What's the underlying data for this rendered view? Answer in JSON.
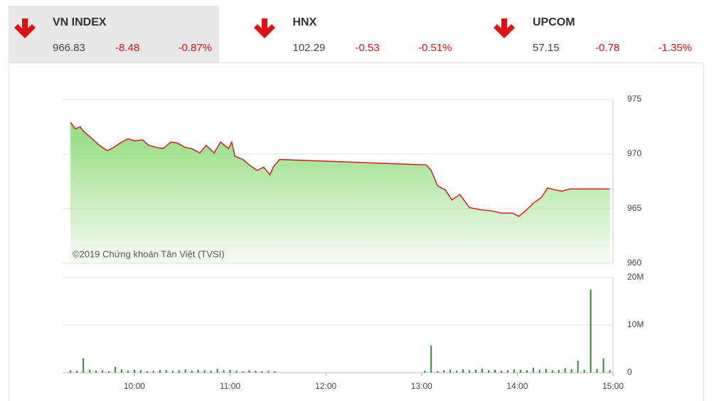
{
  "header": {
    "indices": [
      {
        "name": "VN INDEX",
        "value": "966.83",
        "change": "-8.48",
        "percent": "-0.87%"
      },
      {
        "name": "HNX",
        "value": "102.29",
        "change": "-0.53",
        "percent": "-0.51%"
      },
      {
        "name": "UPCOM",
        "value": "57.15",
        "change": "-0.78",
        "percent": "-1.35%"
      }
    ]
  },
  "chart_data": [
    {
      "type": "area",
      "annotation": "©2019 Chứng khoán Tân Việt (TVSI)",
      "x": [
        560,
        563,
        566,
        568,
        572,
        578,
        583,
        587,
        592,
        596,
        600,
        605,
        609,
        614,
        618,
        623,
        627,
        632,
        636,
        641,
        645,
        650,
        654,
        659,
        661,
        663,
        668,
        672,
        677,
        681,
        685,
        687,
        691,
        783,
        786,
        790,
        795,
        799,
        804,
        810,
        817,
        824,
        830,
        837,
        841,
        846,
        850,
        855,
        859,
        864,
        868,
        873,
        898
      ],
      "values": [
        972.9,
        972.3,
        972.5,
        972.1,
        971.6,
        970.8,
        970.3,
        970.6,
        971.1,
        971.4,
        971.2,
        971.3,
        970.8,
        970.6,
        970.5,
        971.1,
        971.0,
        970.6,
        970.5,
        970.1,
        970.8,
        970.1,
        971.1,
        970.5,
        971.1,
        969.8,
        969.5,
        969.0,
        968.5,
        968.8,
        968.1,
        968.8,
        969.5,
        969.0,
        968.5,
        967.1,
        966.7,
        965.8,
        966.3,
        965.1,
        964.9,
        964.8,
        964.6,
        964.6,
        964.3,
        964.9,
        965.5,
        966.0,
        966.9,
        966.7,
        966.6,
        966.8,
        966.8
      ],
      "color": "#d42020",
      "fill_color": "#8fdc7a",
      "xlim": [
        555,
        900
      ],
      "ylim": [
        960,
        975
      ],
      "yticks": [
        960,
        965,
        970,
        975
      ],
      "grid": true
    },
    {
      "type": "bar",
      "x": [
        560,
        564,
        568,
        572,
        576,
        580,
        584,
        588,
        592,
        596,
        600,
        604,
        608,
        612,
        616,
        620,
        624,
        628,
        632,
        636,
        640,
        644,
        648,
        652,
        656,
        660,
        664,
        668,
        672,
        676,
        680,
        684,
        688,
        782,
        786,
        790,
        794,
        798,
        802,
        806,
        810,
        814,
        818,
        822,
        826,
        830,
        834,
        838,
        842,
        846,
        850,
        854,
        858,
        862,
        866,
        870,
        874,
        878,
        882,
        886,
        890,
        894,
        898
      ],
      "values": [
        500000,
        400000,
        3000000,
        600000,
        400000,
        500000,
        300000,
        1200000,
        700000,
        400000,
        600000,
        500000,
        300000,
        400000,
        600000,
        500000,
        400000,
        500000,
        700000,
        400000,
        600000,
        500000,
        400000,
        800000,
        500000,
        600000,
        400000,
        300000,
        500000,
        400000,
        300000,
        400000,
        300000,
        400000,
        5700000,
        300000,
        500000,
        600000,
        400000,
        700000,
        500000,
        600000,
        800000,
        500000,
        600000,
        400000,
        500000,
        700000,
        600000,
        500000,
        1000000,
        600000,
        800000,
        500000,
        600000,
        900000,
        700000,
        2500000,
        600000,
        17500000,
        800000,
        3000000,
        500000
      ],
      "color": "#2e8b2e",
      "xlim": [
        555,
        900
      ],
      "ylim": [
        0,
        20000000
      ],
      "yticks": [
        0,
        {
          "value": 10000000,
          "label": "10M"
        },
        {
          "value": 20000000,
          "label": "20M"
        }
      ],
      "xticks": [
        {
          "value": 600,
          "label": "10:00"
        },
        {
          "value": 660,
          "label": "11:00"
        },
        {
          "value": 720,
          "label": "12:00"
        },
        {
          "value": 780,
          "label": "13:00"
        },
        {
          "value": 840,
          "label": "14:00"
        },
        {
          "value": 900,
          "label": "15:00"
        }
      ],
      "grid": true
    }
  ]
}
